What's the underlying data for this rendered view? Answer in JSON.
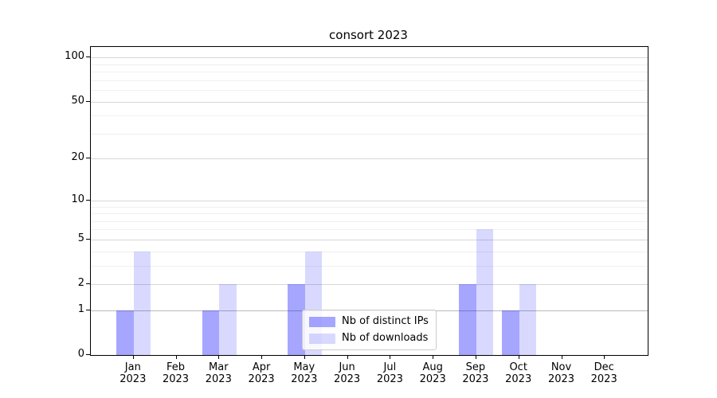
{
  "title": "consort 2023",
  "chart_data": {
    "type": "bar",
    "title": "consort 2023",
    "months": [
      "Jan",
      "Feb",
      "Mar",
      "Apr",
      "May",
      "Jun",
      "Jul",
      "Aug",
      "Sep",
      "Oct",
      "Nov",
      "Dec"
    ],
    "year": "2023",
    "series": [
      {
        "name": "Nb of distinct IPs",
        "color": "rgba(0,0,255,0.35)",
        "values": [
          1,
          0,
          1,
          0,
          2,
          0,
          0,
          0,
          2,
          1,
          0,
          0
        ]
      },
      {
        "name": "Nb of downloads",
        "color": "rgba(0,0,255,0.15)",
        "values": [
          4,
          0,
          2,
          0,
          4,
          0,
          0,
          0,
          6,
          2,
          0,
          0
        ]
      }
    ],
    "yscale": "log1p",
    "y_major_ticks": [
      0,
      1,
      2,
      5,
      10,
      20,
      50,
      100
    ],
    "y_minor_ticks": [
      3,
      4,
      6,
      7,
      8,
      9,
      30,
      40,
      60,
      70,
      80,
      90
    ],
    "ylim": [
      0,
      118
    ],
    "grid": true,
    "legend_location": "lower center"
  },
  "colors": {
    "grid_major": "#d7d7d7",
    "grid_minor": "#f0f0f0",
    "grid_value_one": "#b9b9b9",
    "spine": "#000000",
    "bar_distinct_ips": "rgba(0,0,255,0.35)",
    "bar_downloads": "rgba(0,0,255,0.15)"
  }
}
